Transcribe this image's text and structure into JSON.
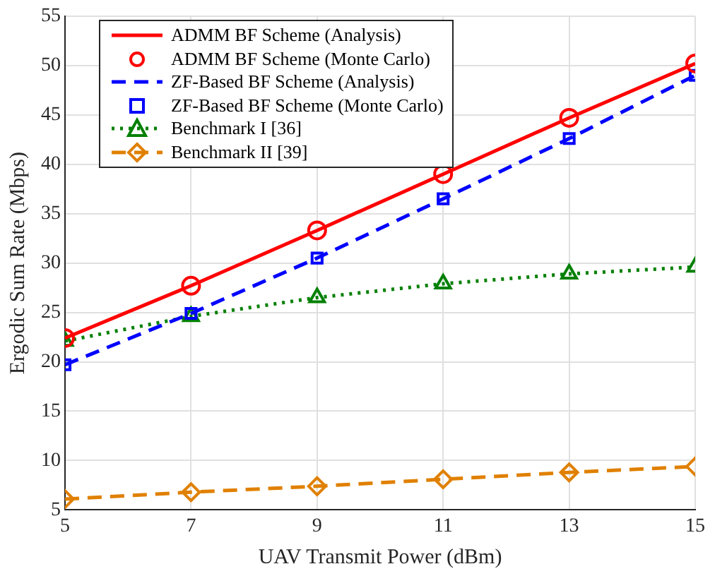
{
  "chart_data": {
    "type": "line",
    "xlabel": "UAV Transmit Power (dBm)",
    "ylabel": "Ergodic Sum Rate (Mbps)",
    "x": [
      5,
      7,
      9,
      11,
      13,
      15
    ],
    "xlim": [
      5,
      15
    ],
    "xticks": [
      5,
      7,
      9,
      11,
      13,
      15
    ],
    "ylim": [
      5,
      55
    ],
    "yticks": [
      5,
      10,
      15,
      20,
      25,
      30,
      35,
      40,
      45,
      50,
      55
    ],
    "grid": true,
    "legend": "top left",
    "series": [
      {
        "name": "ADMM BF Scheme (Analysis)",
        "type": "line",
        "color": "#ff0000",
        "marker": "none",
        "line_style": "solid",
        "values": [
          22.4,
          27.7,
          33.3,
          39.0,
          44.7,
          50.2
        ]
      },
      {
        "name": "ADMM BF Scheme (Monte Carlo)",
        "type": "scatter",
        "color": "#ff0000",
        "marker": "circle",
        "values": [
          22.4,
          27.7,
          33.3,
          39.0,
          44.7,
          50.2
        ]
      },
      {
        "name": "ZF-Based BF Scheme (Analysis)",
        "type": "line",
        "color": "#0000ff",
        "marker": "none",
        "line_style": "dashed",
        "values": [
          19.7,
          24.9,
          30.5,
          36.5,
          42.6,
          49.0
        ]
      },
      {
        "name": "ZF-Based BF Scheme (Monte Carlo)",
        "type": "scatter",
        "color": "#0000ff",
        "marker": "square",
        "values": [
          19.7,
          24.9,
          30.5,
          36.5,
          42.6,
          49.0
        ]
      },
      {
        "name": "Benchmark I [36]",
        "type": "line",
        "color": "#008000",
        "marker": "triangle",
        "line_style": "dotted",
        "values": [
          22.1,
          24.6,
          26.5,
          27.9,
          28.9,
          29.6
        ]
      },
      {
        "name": "Benchmark II [39]",
        "type": "line",
        "color": "#e08000",
        "marker": "diamond",
        "line_style": "dashed",
        "values": [
          6.1,
          6.8,
          7.4,
          8.1,
          8.8,
          9.4
        ]
      }
    ]
  }
}
